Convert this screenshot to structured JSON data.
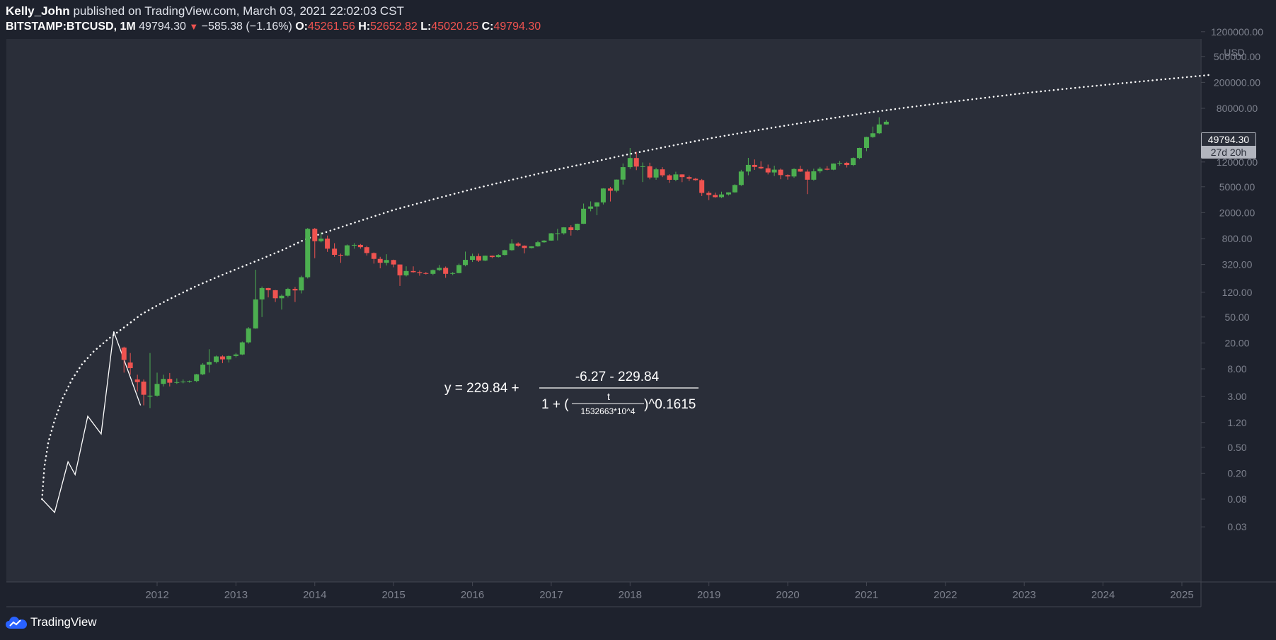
{
  "header": {
    "author": "Kelly_John",
    "published": "published on TradingView.com, March 03, 2021 22:02:03 CST",
    "symbol": "BITSTAMP:BTCUSD, 1M",
    "last": "49794.30",
    "change_arrow": "▼",
    "change": "−585.38 (−1.16%)",
    "open_label": "O:",
    "open": "45261.56",
    "high_label": "H:",
    "high": "52652.82",
    "low_label": "L:",
    "low": "45020.25",
    "close_label": "C:",
    "close": "49794.30"
  },
  "price_tag": {
    "price": "49794.30",
    "countdown": "27d 20h"
  },
  "footer": {
    "brand": "TradingView"
  },
  "colors": {
    "background": "#1e222d",
    "pane": "#2a2e39",
    "up": "#4caf50",
    "down": "#ef5350",
    "curve": "#ffffff"
  },
  "chart_data": {
    "type": "candlestick",
    "scale": "log",
    "currency_label": "USD",
    "y_ticks": [
      {
        "label": "1200000.00",
        "value": 1200000
      },
      {
        "label": "500000.00",
        "value": 500000
      },
      {
        "label": "200000.00",
        "value": 200000
      },
      {
        "label": "80000.00",
        "value": 80000
      },
      {
        "label": "12000.00",
        "value": 12000
      },
      {
        "label": "5000.00",
        "value": 5000
      },
      {
        "label": "2000.00",
        "value": 2000
      },
      {
        "label": "800.00",
        "value": 800
      },
      {
        "label": "320.00",
        "value": 320
      },
      {
        "label": "120.00",
        "value": 120
      },
      {
        "label": "50.00",
        "value": 50
      },
      {
        "label": "20.00",
        "value": 20
      },
      {
        "label": "8.00",
        "value": 8
      },
      {
        "label": "3.00",
        "value": 3
      },
      {
        "label": "1.20",
        "value": 1.2
      },
      {
        "label": "0.50",
        "value": 0.5
      },
      {
        "label": "0.20",
        "value": 0.2
      },
      {
        "label": "0.08",
        "value": 0.08
      },
      {
        "label": "0.03",
        "value": 0.03
      }
    ],
    "x_ticks": [
      "2012",
      "2013",
      "2014",
      "2015",
      "2016",
      "2017",
      "2018",
      "2019",
      "2020",
      "2021",
      "2022",
      "2023",
      "2024",
      "2025"
    ],
    "x_range": [
      2009.5,
      2025.35
    ],
    "y_range": [
      0.025,
      1500000
    ],
    "formula": {
      "lhs": "y = 229.84  +",
      "numerator": "-6.27 - 229.84",
      "denom_left": "1 + (",
      "inner_num": "t",
      "inner_den": "1532663*10^4",
      "denom_right": ")^0.1615"
    },
    "pre_line": [
      [
        2010.54,
        0.08
      ],
      [
        2010.7,
        0.05
      ],
      [
        2010.87,
        0.3
      ],
      [
        2010.96,
        0.19
      ],
      [
        2011.12,
        1.5
      ],
      [
        2011.29,
        0.8
      ],
      [
        2011.45,
        30
      ],
      [
        2011.79,
        2.2
      ]
    ],
    "fit_curve": [
      [
        2010.54,
        0.08
      ],
      [
        2010.57,
        0.25
      ],
      [
        2010.62,
        0.6
      ],
      [
        2010.7,
        1.3
      ],
      [
        2010.8,
        2.8
      ],
      [
        2010.92,
        5.5
      ],
      [
        2011.05,
        9.5
      ],
      [
        2011.2,
        15
      ],
      [
        2011.4,
        24
      ],
      [
        2011.6,
        36
      ],
      [
        2011.8,
        55
      ],
      [
        2012.0,
        75
      ],
      [
        2012.2,
        100
      ],
      [
        2012.5,
        150
      ],
      [
        2012.8,
        215
      ],
      [
        2013.0,
        270
      ],
      [
        2013.3,
        380
      ],
      [
        2013.6,
        540
      ],
      [
        2013.85,
        750
      ],
      [
        2014.0,
        880
      ],
      [
        2014.5,
        1400
      ],
      [
        2015.0,
        2200
      ],
      [
        2015.5,
        3200
      ],
      [
        2016.0,
        4600
      ],
      [
        2016.5,
        6400
      ],
      [
        2017.0,
        8800
      ],
      [
        2017.5,
        11800
      ],
      [
        2017.95,
        15500
      ],
      [
        2018.5,
        21000
      ],
      [
        2019.0,
        27500
      ],
      [
        2019.5,
        35000
      ],
      [
        2020.0,
        44000
      ],
      [
        2020.5,
        55000
      ],
      [
        2021.0,
        68000
      ],
      [
        2021.5,
        82000
      ],
      [
        2022.0,
        98000
      ],
      [
        2022.5,
        116000
      ],
      [
        2023.0,
        137000
      ],
      [
        2023.5,
        158000
      ],
      [
        2024.0,
        182000
      ],
      [
        2024.5,
        208000
      ],
      [
        2025.0,
        237000
      ],
      [
        2025.35,
        260000
      ]
    ],
    "candles": [
      {
        "t": 2011.58,
        "o": 17,
        "h": 17.5,
        "l": 7,
        "c": 11
      },
      {
        "t": 2011.66,
        "o": 10,
        "h": 14,
        "l": 6.5,
        "c": 8.2
      },
      {
        "t": 2011.75,
        "o": 5.5,
        "h": 6.5,
        "l": 3.6,
        "c": 5
      },
      {
        "t": 2011.83,
        "o": 5.1,
        "h": 5.5,
        "l": 2.2,
        "c": 3.2
      },
      {
        "t": 2011.91,
        "o": 3.0,
        "h": 14,
        "l": 2.0,
        "c": 3.1
      },
      {
        "t": 2012.0,
        "o": 3.1,
        "h": 7.0,
        "l": 3.0,
        "c": 4.7
      },
      {
        "t": 2012.08,
        "o": 4.7,
        "h": 6.5,
        "l": 4.3,
        "c": 5.6
      },
      {
        "t": 2012.16,
        "o": 5.6,
        "h": 6.9,
        "l": 4.3,
        "c": 4.9
      },
      {
        "t": 2012.25,
        "o": 4.9,
        "h": 5.7,
        "l": 4.7,
        "c": 5.0
      },
      {
        "t": 2012.33,
        "o": 5.0,
        "h": 5.5,
        "l": 4.8,
        "c": 5.1
      },
      {
        "t": 2012.41,
        "o": 5.1,
        "h": 5.3,
        "l": 4.9,
        "c": 5.2
      },
      {
        "t": 2012.5,
        "o": 5.2,
        "h": 6.7,
        "l": 5.0,
        "c": 6.6
      },
      {
        "t": 2012.58,
        "o": 6.6,
        "h": 9.8,
        "l": 6.4,
        "c": 9.3
      },
      {
        "t": 2012.66,
        "o": 9.3,
        "h": 16.0,
        "l": 7.0,
        "c": 10.2
      },
      {
        "t": 2012.75,
        "o": 10.2,
        "h": 12.8,
        "l": 9.7,
        "c": 12.4
      },
      {
        "t": 2012.83,
        "o": 12.4,
        "h": 12.9,
        "l": 9.8,
        "c": 11.2
      },
      {
        "t": 2012.91,
        "o": 11.2,
        "h": 12.8,
        "l": 10.0,
        "c": 12.6
      },
      {
        "t": 2013.0,
        "o": 12.6,
        "h": 14.0,
        "l": 12.0,
        "c": 13.3
      },
      {
        "t": 2013.08,
        "o": 13.3,
        "h": 21.0,
        "l": 13.0,
        "c": 20.4
      },
      {
        "t": 2013.16,
        "o": 20.4,
        "h": 35.0,
        "l": 19.5,
        "c": 33.4
      },
      {
        "t": 2013.25,
        "o": 33.4,
        "h": 266.0,
        "l": 33.0,
        "c": 93.0
      },
      {
        "t": 2013.33,
        "o": 93.0,
        "h": 147.0,
        "l": 50.0,
        "c": 139.0
      },
      {
        "t": 2013.41,
        "o": 139.0,
        "h": 140.0,
        "l": 100.0,
        "c": 129.0
      },
      {
        "t": 2013.5,
        "o": 129.0,
        "h": 130.0,
        "l": 85.0,
        "c": 97.0
      },
      {
        "t": 2013.58,
        "o": 97.0,
        "h": 111.0,
        "l": 65.0,
        "c": 106.0
      },
      {
        "t": 2013.66,
        "o": 106.0,
        "h": 140.0,
        "l": 100.0,
        "c": 135.0
      },
      {
        "t": 2013.75,
        "o": 135.0,
        "h": 145.0,
        "l": 85.0,
        "c": 128.0
      },
      {
        "t": 2013.83,
        "o": 128.0,
        "h": 215.0,
        "l": 115.0,
        "c": 204.0
      },
      {
        "t": 2013.91,
        "o": 204.0,
        "h": 1163.0,
        "l": 195.0,
        "c": 1130.0
      },
      {
        "t": 2014.0,
        "o": 1130.0,
        "h": 1165.0,
        "l": 400.0,
        "c": 730.0
      },
      {
        "t": 2014.08,
        "o": 730.0,
        "h": 1000.0,
        "l": 700.0,
        "c": 800.0
      },
      {
        "t": 2014.16,
        "o": 800.0,
        "h": 890.0,
        "l": 500.0,
        "c": 560.0
      },
      {
        "t": 2014.25,
        "o": 560.0,
        "h": 680.0,
        "l": 420.0,
        "c": 450.0
      },
      {
        "t": 2014.33,
        "o": 450.0,
        "h": 470.0,
        "l": 340.0,
        "c": 440.0
      },
      {
        "t": 2014.41,
        "o": 440.0,
        "h": 650.0,
        "l": 430.0,
        "c": 630.0
      },
      {
        "t": 2014.5,
        "o": 630.0,
        "h": 680.0,
        "l": 560.0,
        "c": 640.0
      },
      {
        "t": 2014.58,
        "o": 640.0,
        "h": 660.0,
        "l": 560.0,
        "c": 590.0
      },
      {
        "t": 2014.66,
        "o": 590.0,
        "h": 620.0,
        "l": 440.0,
        "c": 480.0
      },
      {
        "t": 2014.75,
        "o": 480.0,
        "h": 490.0,
        "l": 330.0,
        "c": 390.0
      },
      {
        "t": 2014.83,
        "o": 390.0,
        "h": 420.0,
        "l": 280.0,
        "c": 340.0
      },
      {
        "t": 2014.91,
        "o": 340.0,
        "h": 460.0,
        "l": 310.0,
        "c": 375.0
      },
      {
        "t": 2015.0,
        "o": 375.0,
        "h": 380.0,
        "l": 290.0,
        "c": 320.0
      },
      {
        "t": 2015.08,
        "o": 320.0,
        "h": 320.0,
        "l": 150.0,
        "c": 218.0
      },
      {
        "t": 2015.16,
        "o": 218.0,
        "h": 300.0,
        "l": 210.0,
        "c": 254.0
      },
      {
        "t": 2015.25,
        "o": 254.0,
        "h": 300.0,
        "l": 240.0,
        "c": 244.0
      },
      {
        "t": 2015.33,
        "o": 244.0,
        "h": 258.0,
        "l": 215.0,
        "c": 236.0
      },
      {
        "t": 2015.41,
        "o": 236.0,
        "h": 245.0,
        "l": 225.0,
        "c": 230.0
      },
      {
        "t": 2015.5,
        "o": 230.0,
        "h": 268.0,
        "l": 220.0,
        "c": 263.0
      },
      {
        "t": 2015.58,
        "o": 263.0,
        "h": 315.0,
        "l": 255.0,
        "c": 284.0
      },
      {
        "t": 2015.66,
        "o": 284.0,
        "h": 298.0,
        "l": 200.0,
        "c": 230.0
      },
      {
        "t": 2015.75,
        "o": 230.0,
        "h": 245.0,
        "l": 220.0,
        "c": 236.0
      },
      {
        "t": 2015.83,
        "o": 236.0,
        "h": 330.0,
        "l": 234.0,
        "c": 314.0
      },
      {
        "t": 2015.91,
        "o": 314.0,
        "h": 505.0,
        "l": 300.0,
        "c": 377.0
      },
      {
        "t": 2016.0,
        "o": 377.0,
        "h": 470.0,
        "l": 350.0,
        "c": 430.0
      },
      {
        "t": 2016.08,
        "o": 430.0,
        "h": 470.0,
        "l": 350.0,
        "c": 368.0
      },
      {
        "t": 2016.16,
        "o": 368.0,
        "h": 440.0,
        "l": 360.0,
        "c": 437.0
      },
      {
        "t": 2016.25,
        "o": 437.0,
        "h": 440.0,
        "l": 400.0,
        "c": 416.0
      },
      {
        "t": 2016.33,
        "o": 416.0,
        "h": 460.0,
        "l": 410.0,
        "c": 448.0
      },
      {
        "t": 2016.41,
        "o": 448.0,
        "h": 540.0,
        "l": 440.0,
        "c": 531.0
      },
      {
        "t": 2016.5,
        "o": 531.0,
        "h": 780.0,
        "l": 520.0,
        "c": 672.0
      },
      {
        "t": 2016.58,
        "o": 672.0,
        "h": 700.0,
        "l": 600.0,
        "c": 624.0
      },
      {
        "t": 2016.66,
        "o": 624.0,
        "h": 630.0,
        "l": 475.0,
        "c": 573.0
      },
      {
        "t": 2016.75,
        "o": 573.0,
        "h": 610.0,
        "l": 565.0,
        "c": 608.0
      },
      {
        "t": 2016.83,
        "o": 608.0,
        "h": 740.0,
        "l": 600.0,
        "c": 702.0
      },
      {
        "t": 2016.91,
        "o": 702.0,
        "h": 757.0,
        "l": 690.0,
        "c": 745.0
      },
      {
        "t": 2017.0,
        "o": 745.0,
        "h": 975.0,
        "l": 740.0,
        "c": 964.0
      },
      {
        "t": 2017.08,
        "o": 964.0,
        "h": 1130.0,
        "l": 750.0,
        "c": 966.0
      },
      {
        "t": 2017.16,
        "o": 966.0,
        "h": 1200.0,
        "l": 920.0,
        "c": 1190.0
      },
      {
        "t": 2017.25,
        "o": 1190.0,
        "h": 1280.0,
        "l": 890.0,
        "c": 1080.0
      },
      {
        "t": 2017.33,
        "o": 1080.0,
        "h": 1360.0,
        "l": 1060.0,
        "c": 1350.0
      },
      {
        "t": 2017.41,
        "o": 1350.0,
        "h": 2760.0,
        "l": 1340.0,
        "c": 2300.0
      },
      {
        "t": 2017.5,
        "o": 2300.0,
        "h": 2980.0,
        "l": 2100.0,
        "c": 2490.0
      },
      {
        "t": 2017.58,
        "o": 2490.0,
        "h": 2900.0,
        "l": 1830.0,
        "c": 2875.0
      },
      {
        "t": 2017.66,
        "o": 2875.0,
        "h": 4750.0,
        "l": 2670.0,
        "c": 4700.0
      },
      {
        "t": 2017.75,
        "o": 4700.0,
        "h": 4980.0,
        "l": 2970.0,
        "c": 4340.0
      },
      {
        "t": 2017.83,
        "o": 4340.0,
        "h": 6470.0,
        "l": 4110.0,
        "c": 6440.0
      },
      {
        "t": 2017.91,
        "o": 6440.0,
        "h": 11400.0,
        "l": 5400.0,
        "c": 10000.0
      },
      {
        "t": 2018.0,
        "o": 10000.0,
        "h": 19700.0,
        "l": 9400.0,
        "c": 13800.0
      },
      {
        "t": 2018.08,
        "o": 13800.0,
        "h": 17100.0,
        "l": 9000.0,
        "c": 10200.0
      },
      {
        "t": 2018.16,
        "o": 10200.0,
        "h": 11800.0,
        "l": 5900.0,
        "c": 10300.0
      },
      {
        "t": 2018.25,
        "o": 10300.0,
        "h": 11700.0,
        "l": 6500.0,
        "c": 6930.0
      },
      {
        "t": 2018.33,
        "o": 6930.0,
        "h": 9800.0,
        "l": 6400.0,
        "c": 9250.0
      },
      {
        "t": 2018.41,
        "o": 9250.0,
        "h": 9990.0,
        "l": 7030.0,
        "c": 7490.0
      },
      {
        "t": 2018.5,
        "o": 7490.0,
        "h": 7780.0,
        "l": 5750.0,
        "c": 6390.0
      },
      {
        "t": 2018.58,
        "o": 6390.0,
        "h": 8500.0,
        "l": 6070.0,
        "c": 7730.0
      },
      {
        "t": 2018.66,
        "o": 7730.0,
        "h": 7760.0,
        "l": 5880.0,
        "c": 7030.0
      },
      {
        "t": 2018.75,
        "o": 7030.0,
        "h": 7410.0,
        "l": 6120.0,
        "c": 6630.0
      },
      {
        "t": 2018.83,
        "o": 6630.0,
        "h": 6800.0,
        "l": 6200.0,
        "c": 6320.0
      },
      {
        "t": 2018.91,
        "o": 6320.0,
        "h": 6580.0,
        "l": 3600.0,
        "c": 4020.0
      },
      {
        "t": 2019.0,
        "o": 4020.0,
        "h": 4250.0,
        "l": 3120.0,
        "c": 3740.0
      },
      {
        "t": 2019.08,
        "o": 3740.0,
        "h": 4060.0,
        "l": 3400.0,
        "c": 3460.0
      },
      {
        "t": 2019.16,
        "o": 3460.0,
        "h": 4200.0,
        "l": 3350.0,
        "c": 3810.0
      },
      {
        "t": 2019.25,
        "o": 3810.0,
        "h": 4100.0,
        "l": 3670.0,
        "c": 4100.0
      },
      {
        "t": 2019.33,
        "o": 4100.0,
        "h": 5470.0,
        "l": 4050.0,
        "c": 5320.0
      },
      {
        "t": 2019.41,
        "o": 5320.0,
        "h": 9100.0,
        "l": 5150.0,
        "c": 8560.0
      },
      {
        "t": 2019.5,
        "o": 8560.0,
        "h": 13880.0,
        "l": 7500.0,
        "c": 10820.0
      },
      {
        "t": 2019.58,
        "o": 10820.0,
        "h": 13130.0,
        "l": 9070.0,
        "c": 10080.0
      },
      {
        "t": 2019.66,
        "o": 10080.0,
        "h": 12340.0,
        "l": 9330.0,
        "c": 9590.0
      },
      {
        "t": 2019.75,
        "o": 9590.0,
        "h": 10950.0,
        "l": 7730.0,
        "c": 8290.0
      },
      {
        "t": 2019.83,
        "o": 8290.0,
        "h": 10540.0,
        "l": 7300.0,
        "c": 9150.0
      },
      {
        "t": 2019.91,
        "o": 9150.0,
        "h": 9520.0,
        "l": 6520.0,
        "c": 7550.0
      },
      {
        "t": 2020.0,
        "o": 7550.0,
        "h": 7740.0,
        "l": 6430.0,
        "c": 7190.0
      },
      {
        "t": 2020.08,
        "o": 7190.0,
        "h": 9580.0,
        "l": 6850.0,
        "c": 9350.0
      },
      {
        "t": 2020.16,
        "o": 9350.0,
        "h": 10500.0,
        "l": 8450.0,
        "c": 8540.0
      },
      {
        "t": 2020.25,
        "o": 8540.0,
        "h": 9180.0,
        "l": 3850.0,
        "c": 6410.0
      },
      {
        "t": 2020.33,
        "o": 6410.0,
        "h": 9460.0,
        "l": 6200.0,
        "c": 8630.0
      },
      {
        "t": 2020.41,
        "o": 8630.0,
        "h": 10070.0,
        "l": 8100.0,
        "c": 9450.0
      },
      {
        "t": 2020.5,
        "o": 9450.0,
        "h": 10380.0,
        "l": 8950.0,
        "c": 9140.0
      },
      {
        "t": 2020.58,
        "o": 9140.0,
        "h": 11430.0,
        "l": 8980.0,
        "c": 11350.0
      },
      {
        "t": 2020.66,
        "o": 11350.0,
        "h": 12470.0,
        "l": 10570.0,
        "c": 11650.0
      },
      {
        "t": 2020.75,
        "o": 11650.0,
        "h": 12050.0,
        "l": 9880.0,
        "c": 10780.0
      },
      {
        "t": 2020.83,
        "o": 10780.0,
        "h": 14100.0,
        "l": 10380.0,
        "c": 13800.0
      },
      {
        "t": 2020.91,
        "o": 13800.0,
        "h": 19860.0,
        "l": 13240.0,
        "c": 19700.0
      },
      {
        "t": 2021.0,
        "o": 19700.0,
        "h": 29300.0,
        "l": 17600.0,
        "c": 28990.0
      },
      {
        "t": 2021.08,
        "o": 28990.0,
        "h": 41950.0,
        "l": 28150.0,
        "c": 33110.0
      },
      {
        "t": 2021.16,
        "o": 33110.0,
        "h": 58350.0,
        "l": 32300.0,
        "c": 45240.0
      },
      {
        "t": 2021.25,
        "o": 45261.56,
        "h": 52652.82,
        "l": 45020.25,
        "c": 49794.3
      }
    ]
  }
}
